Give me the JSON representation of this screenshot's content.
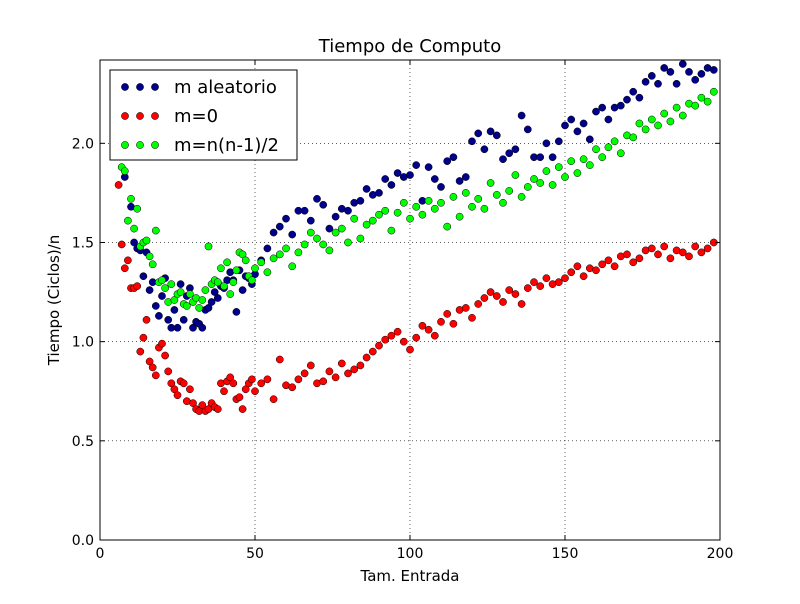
{
  "chart_data": {
    "type": "scatter",
    "title": "Tiempo de Computo",
    "xlabel": "Tam. Entrada",
    "ylabel": "Tiempo (Ciclos)/n",
    "xlim": [
      0,
      200
    ],
    "ylim": [
      0,
      2.42
    ],
    "xticks": [
      0,
      50,
      100,
      150,
      200
    ],
    "xtick_labels": [
      "0",
      "50",
      "100",
      "150",
      "200"
    ],
    "yticks": [
      0,
      0.5,
      1.0,
      1.5,
      2.0
    ],
    "ytick_labels": [
      "0.0",
      "0.5",
      "1.0",
      "1.5",
      "2.0"
    ],
    "grid": true,
    "grid_style": "dotted",
    "legend_position": "top-left",
    "series": [
      {
        "name": "m aleatorio",
        "color": "#00008b",
        "x": [
          7,
          8,
          9,
          10,
          11,
          12,
          13,
          14,
          15,
          16,
          17,
          18,
          19,
          20,
          21,
          22,
          23,
          24,
          25,
          26,
          27,
          28,
          29,
          30,
          31,
          32,
          33,
          34,
          35,
          36,
          37,
          38,
          39,
          40,
          41,
          42,
          43,
          44,
          45,
          46,
          47,
          48,
          49,
          50,
          52,
          54,
          56,
          58,
          60,
          62,
          64,
          66,
          68,
          70,
          72,
          74,
          76,
          78,
          80,
          82,
          84,
          86,
          88,
          90,
          92,
          94,
          96,
          98,
          100,
          102,
          104,
          106,
          108,
          110,
          112,
          114,
          116,
          118,
          120,
          122,
          124,
          126,
          128,
          130,
          132,
          134,
          136,
          138,
          140,
          142,
          144,
          146,
          148,
          150,
          152,
          154,
          156,
          158,
          160,
          162,
          164,
          166,
          168,
          170,
          172,
          174,
          176,
          178,
          180,
          182,
          184,
          186,
          188,
          190,
          192,
          194,
          196,
          198
        ],
        "y": [
          2.3,
          1.83,
          1.97,
          1.68,
          1.5,
          1.47,
          1.46,
          1.33,
          1.45,
          1.26,
          1.3,
          1.18,
          1.13,
          1.23,
          1.32,
          1.11,
          1.07,
          1.16,
          1.07,
          1.29,
          1.11,
          1.23,
          1.27,
          1.07,
          1.1,
          1.09,
          1.07,
          1.16,
          1.17,
          1.2,
          1.25,
          1.22,
          1.28,
          1.27,
          1.31,
          1.35,
          1.31,
          1.15,
          1.36,
          1.26,
          1.33,
          1.32,
          1.29,
          1.34,
          1.41,
          1.47,
          1.55,
          1.58,
          1.62,
          1.54,
          1.66,
          1.66,
          1.61,
          1.72,
          1.69,
          1.57,
          1.63,
          1.67,
          1.66,
          1.7,
          1.71,
          1.77,
          1.74,
          1.75,
          1.82,
          1.79,
          1.85,
          1.83,
          1.84,
          1.89,
          1.71,
          1.88,
          1.82,
          1.78,
          1.91,
          1.93,
          1.81,
          1.83,
          2.01,
          2.05,
          1.97,
          2.06,
          2.04,
          1.92,
          1.95,
          1.97,
          2.14,
          2.07,
          1.93,
          1.93,
          2.0,
          1.93,
          2.01,
          2.09,
          2.12,
          2.06,
          2.1,
          2.02,
          2.16,
          2.18,
          2.12,
          2.18,
          2.19,
          2.22,
          2.26,
          2.23,
          2.31,
          2.34,
          2.3,
          2.38,
          2.36,
          2.3,
          2.4,
          2.36,
          2.32,
          2.35,
          2.38,
          2.37
        ]
      },
      {
        "name": "m=0",
        "color": "#ff0000",
        "x": [
          5,
          6,
          7,
          8,
          9,
          10,
          11,
          12,
          13,
          14,
          15,
          16,
          17,
          18,
          19,
          20,
          21,
          22,
          23,
          24,
          25,
          26,
          27,
          28,
          29,
          30,
          31,
          32,
          33,
          34,
          35,
          36,
          37,
          38,
          39,
          40,
          41,
          42,
          43,
          44,
          45,
          46,
          47,
          48,
          49,
          50,
          52,
          54,
          56,
          58,
          60,
          62,
          64,
          66,
          68,
          70,
          72,
          74,
          76,
          78,
          80,
          82,
          84,
          86,
          88,
          90,
          92,
          94,
          96,
          98,
          100,
          102,
          104,
          106,
          108,
          110,
          112,
          114,
          116,
          118,
          120,
          122,
          124,
          126,
          128,
          130,
          132,
          134,
          136,
          138,
          140,
          142,
          144,
          146,
          148,
          150,
          152,
          154,
          156,
          158,
          160,
          162,
          164,
          166,
          168,
          170,
          172,
          174,
          176,
          178,
          180,
          182,
          184,
          186,
          188,
          190,
          192,
          194,
          196,
          198
        ],
        "y": [
          2.27,
          1.79,
          1.49,
          1.37,
          1.41,
          1.27,
          1.27,
          1.28,
          0.95,
          1.02,
          1.11,
          0.9,
          0.87,
          0.83,
          0.97,
          0.99,
          0.93,
          0.85,
          0.79,
          0.76,
          0.73,
          0.8,
          0.79,
          0.7,
          0.76,
          0.69,
          0.66,
          0.65,
          0.68,
          0.65,
          0.66,
          0.69,
          0.67,
          0.66,
          0.79,
          0.75,
          0.8,
          0.82,
          0.79,
          0.71,
          0.72,
          0.66,
          0.76,
          0.79,
          0.81,
          0.75,
          0.79,
          0.81,
          0.71,
          0.91,
          0.78,
          0.77,
          0.81,
          0.84,
          0.88,
          0.79,
          0.8,
          0.85,
          0.82,
          0.89,
          0.84,
          0.86,
          0.88,
          0.92,
          0.95,
          0.98,
          1.01,
          1.03,
          1.05,
          1.0,
          0.96,
          1.02,
          1.08,
          1.06,
          1.03,
          1.1,
          1.14,
          1.09,
          1.16,
          1.17,
          1.12,
          1.19,
          1.22,
          1.25,
          1.23,
          1.2,
          1.26,
          1.24,
          1.19,
          1.27,
          1.3,
          1.28,
          1.32,
          1.29,
          1.3,
          1.32,
          1.35,
          1.38,
          1.33,
          1.37,
          1.36,
          1.39,
          1.41,
          1.38,
          1.43,
          1.44,
          1.4,
          1.42,
          1.46,
          1.47,
          1.44,
          1.48,
          1.42,
          1.46,
          1.45,
          1.43,
          1.48,
          1.45,
          1.47,
          1.5
        ]
      },
      {
        "name": "m=n(n-1)/2",
        "color": "#00ff00",
        "x": [
          6,
          7,
          8,
          9,
          10,
          11,
          12,
          13,
          14,
          15,
          16,
          17,
          18,
          19,
          20,
          21,
          22,
          23,
          24,
          25,
          26,
          27,
          28,
          29,
          30,
          31,
          32,
          33,
          34,
          35,
          36,
          37,
          38,
          39,
          40,
          41,
          42,
          43,
          44,
          45,
          46,
          47,
          48,
          49,
          50,
          52,
          54,
          56,
          58,
          60,
          62,
          64,
          66,
          68,
          70,
          72,
          74,
          76,
          78,
          80,
          82,
          84,
          86,
          88,
          90,
          92,
          94,
          96,
          98,
          100,
          102,
          104,
          106,
          108,
          110,
          112,
          114,
          116,
          118,
          120,
          122,
          124,
          126,
          128,
          130,
          132,
          134,
          136,
          138,
          140,
          142,
          144,
          146,
          148,
          150,
          152,
          154,
          156,
          158,
          160,
          162,
          164,
          166,
          168,
          170,
          172,
          174,
          176,
          178,
          180,
          182,
          184,
          186,
          188,
          190,
          192,
          194,
          196,
          198
        ],
        "y": [
          2.12,
          1.88,
          1.86,
          1.61,
          1.72,
          1.57,
          1.67,
          1.48,
          1.5,
          1.51,
          1.43,
          1.39,
          1.56,
          1.3,
          1.31,
          1.27,
          1.2,
          1.29,
          1.21,
          1.24,
          1.25,
          1.19,
          1.18,
          1.24,
          1.2,
          1.22,
          1.17,
          1.21,
          1.26,
          1.48,
          1.29,
          1.31,
          1.3,
          1.37,
          1.28,
          1.4,
          1.24,
          1.3,
          1.36,
          1.45,
          1.44,
          1.41,
          1.33,
          1.31,
          1.37,
          1.4,
          1.35,
          1.42,
          1.44,
          1.47,
          1.38,
          1.45,
          1.49,
          1.55,
          1.52,
          1.49,
          1.46,
          1.55,
          1.57,
          1.5,
          1.62,
          1.52,
          1.59,
          1.61,
          1.64,
          1.66,
          1.56,
          1.65,
          1.7,
          1.62,
          1.68,
          1.64,
          1.71,
          1.67,
          1.7,
          1.58,
          1.73,
          1.63,
          1.75,
          1.68,
          1.72,
          1.67,
          1.8,
          1.74,
          1.7,
          1.76,
          1.84,
          1.73,
          1.78,
          1.82,
          1.8,
          1.86,
          1.79,
          1.88,
          1.83,
          1.91,
          1.85,
          1.92,
          1.89,
          1.97,
          1.93,
          1.98,
          2.01,
          1.95,
          2.04,
          2.03,
          2.1,
          2.07,
          2.12,
          2.09,
          2.15,
          2.11,
          2.18,
          2.14,
          2.2,
          2.19,
          2.23,
          2.21,
          2.26
        ]
      }
    ]
  }
}
